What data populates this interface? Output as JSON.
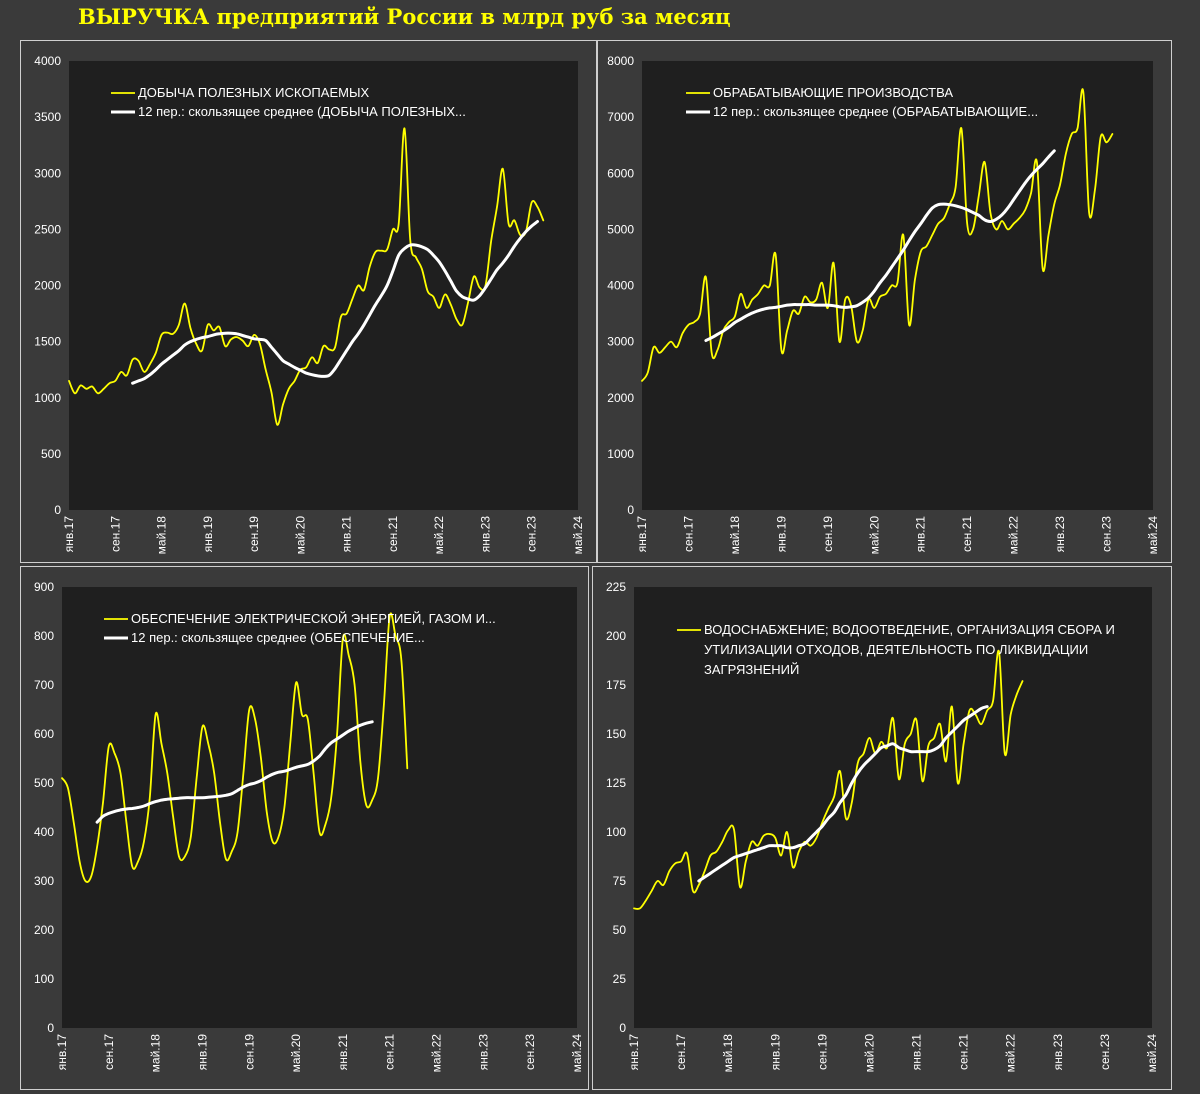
{
  "title": "ВЫРУЧКА предприятий России в млрд руб за месяц",
  "colors": {
    "background": "#3a3a3a",
    "plot": "#1f1f1f",
    "actual": "#ffff00",
    "moving_average": "#ffffff",
    "text": "#ffffff"
  },
  "chart_data": [
    {
      "type": "line",
      "title": "",
      "xlabel": "",
      "ylabel": "",
      "ylim": [
        0,
        4000
      ],
      "yticks": [
        "0",
        "500",
        "1000",
        "1500",
        "2000",
        "2500",
        "3000",
        "3500",
        "4000"
      ],
      "xticks": [
        "янв.17",
        "сен.17",
        "май.18",
        "янв.19",
        "сен.19",
        "май.20",
        "янв.21",
        "сен.21",
        "май.22",
        "янв.23",
        "сен.23",
        "май.24"
      ],
      "legend": [
        "ДОБЫЧА ПОЛЕЗНЫХ ИСКОПАЕМЫХ",
        "12 пер.: скользящее среднее (ДОБЫЧА ПОЛЕЗНЫХ..."
      ],
      "series": [
        {
          "name": "ДОБЫЧА ПОЛЕЗНЫХ ИСКОПАЕМЫХ",
          "role": "actual",
          "start": 0,
          "values": [
            1150,
            1040,
            1110,
            1080,
            1100,
            1040,
            1080,
            1130,
            1150,
            1230,
            1200,
            1340,
            1330,
            1230,
            1300,
            1400,
            1560,
            1580,
            1570,
            1650,
            1840,
            1620,
            1480,
            1420,
            1650,
            1600,
            1630,
            1460,
            1520,
            1540,
            1510,
            1460,
            1560,
            1480,
            1250,
            1050,
            760,
            940,
            1080,
            1150,
            1250,
            1270,
            1360,
            1310,
            1460,
            1430,
            1450,
            1720,
            1750,
            1880,
            2000,
            1960,
            2170,
            2300,
            2310,
            2320,
            2500,
            2550,
            3400,
            2400,
            2250,
            2150,
            1950,
            1900,
            1800,
            1920,
            1830,
            1700,
            1650,
            1850,
            2080,
            1980,
            2000,
            2400,
            2700,
            3040,
            2550,
            2580,
            2450,
            2480,
            2740,
            2700,
            2580
          ]
        },
        {
          "name": "12 пер.: скользящее среднее (ДОБЫЧА ПОЛЕЗНЫХ...",
          "role": "moving_average",
          "start": 11,
          "values": [
            1130,
            1150,
            1170,
            1205,
            1250,
            1300,
            1340,
            1380,
            1420,
            1470,
            1500,
            1520,
            1535,
            1545,
            1560,
            1570,
            1575,
            1575,
            1570,
            1555,
            1540,
            1525,
            1520,
            1510,
            1450,
            1390,
            1330,
            1300,
            1270,
            1245,
            1220,
            1205,
            1195,
            1190,
            1200,
            1260,
            1340,
            1420,
            1500,
            1570,
            1650,
            1740,
            1830,
            1910,
            2000,
            2130,
            2270,
            2330,
            2360,
            2360,
            2345,
            2320,
            2270,
            2210,
            2130,
            2040,
            1950,
            1900,
            1880,
            1870,
            1910,
            1980,
            2060,
            2140,
            2200,
            2270,
            2350,
            2420,
            2480,
            2530,
            2570
          ]
        }
      ]
    },
    {
      "type": "line",
      "title": "",
      "xlabel": "",
      "ylabel": "",
      "ylim": [
        0,
        8000
      ],
      "yticks": [
        "0",
        "1000",
        "2000",
        "3000",
        "4000",
        "5000",
        "6000",
        "7000",
        "8000"
      ],
      "xticks": [
        "янв.17",
        "сен.17",
        "май.18",
        "янв.19",
        "сен.19",
        "май.20",
        "янв.21",
        "сен.21",
        "май.22",
        "янв.23",
        "сен.23",
        "май.24"
      ],
      "legend": [
        "ОБРАБАТЫВАЮЩИЕ ПРОИЗВОДСТВА",
        "12 пер.: скользящее среднее (ОБРАБАТЫВАЮЩИЕ..."
      ],
      "series": [
        {
          "name": "ОБРАБАТЫВАЮЩИЕ ПРОИЗВОДСТВА",
          "role": "actual",
          "start": 0,
          "values": [
            2300,
            2450,
            2900,
            2800,
            2900,
            3000,
            2900,
            3150,
            3300,
            3350,
            3500,
            4150,
            2800,
            2850,
            3200,
            3350,
            3450,
            3850,
            3600,
            3750,
            3850,
            4000,
            4000,
            4550,
            2850,
            3200,
            3550,
            3500,
            3800,
            3700,
            3750,
            4050,
            3600,
            4400,
            3000,
            3750,
            3650,
            3000,
            3200,
            3750,
            3600,
            3800,
            3850,
            4000,
            4050,
            4900,
            3300,
            4100,
            4600,
            4700,
            4900,
            5100,
            5200,
            5450,
            5750,
            6800,
            5100,
            5000,
            5600,
            6200,
            5300,
            5000,
            5150,
            5000,
            5100,
            5200,
            5350,
            5650,
            6200,
            4300,
            4900,
            5450,
            5800,
            6350,
            6700,
            6800,
            7450,
            5300,
            5700,
            6650,
            6550,
            6700
          ]
        },
        {
          "name": "12 пер.: скользящее среднее (ОБРАБАТЫВАЮЩИЕ...",
          "role": "moving_average",
          "start": 11,
          "values": [
            3020,
            3070,
            3130,
            3190,
            3260,
            3340,
            3400,
            3460,
            3510,
            3550,
            3580,
            3600,
            3610,
            3630,
            3650,
            3660,
            3660,
            3660,
            3660,
            3650,
            3650,
            3650,
            3640,
            3620,
            3610,
            3620,
            3640,
            3700,
            3780,
            3900,
            4050,
            4180,
            4330,
            4480,
            4630,
            4800,
            4960,
            5100,
            5250,
            5380,
            5440,
            5450,
            5440,
            5420,
            5390,
            5350,
            5300,
            5250,
            5170,
            5140,
            5180,
            5260,
            5380,
            5530,
            5680,
            5830,
            5960,
            6070,
            6170,
            6290,
            6400
          ]
        }
      ]
    },
    {
      "type": "line",
      "title": "",
      "xlabel": "",
      "ylabel": "",
      "ylim": [
        0,
        900
      ],
      "yticks": [
        "0",
        "100",
        "200",
        "300",
        "400",
        "500",
        "600",
        "700",
        "800",
        "900"
      ],
      "xticks": [
        "янв.17",
        "сен.17",
        "май.18",
        "янв.19",
        "сен.19",
        "май.20",
        "янв.21",
        "сен.21",
        "май.22",
        "янв.23",
        "сен.23",
        "май.24"
      ],
      "legend": [
        "ОБЕСПЕЧЕНИЕ ЭЛЕКТРИЧЕСКОЙ ЭНЕРГИЕЙ, ГАЗОМ И...",
        "12 пер.: скользящее среднее (ОБЕСПЕЧЕНИЕ..."
      ],
      "series": [
        {
          "name": "ОБЕСПЕЧЕНИЕ ЭЛЕКТРИЧЕСКОЙ ЭНЕРГИЕЙ, ГАЗОМ И...",
          "role": "actual",
          "start": 0,
          "values": [
            510,
            490,
            420,
            340,
            300,
            310,
            370,
            460,
            575,
            560,
            520,
            420,
            330,
            340,
            380,
            470,
            640,
            580,
            520,
            430,
            350,
            350,
            390,
            510,
            615,
            580,
            520,
            420,
            345,
            360,
            400,
            520,
            650,
            630,
            550,
            440,
            380,
            390,
            450,
            580,
            705,
            640,
            630,
            520,
            400,
            415,
            470,
            600,
            795,
            760,
            700,
            540,
            455,
            465,
            510,
            660,
            840,
            800,
            750,
            530
          ]
        },
        {
          "name": "12 пер.: скользящее среднее (ОБЕСПЕЧЕНИЕ...",
          "role": "moving_average",
          "start": 6,
          "values": [
            420,
            432,
            438,
            442,
            445,
            447,
            448,
            450,
            453,
            458,
            462,
            465,
            467,
            468,
            469,
            470,
            470,
            470,
            470,
            471,
            472,
            473,
            475,
            478,
            485,
            492,
            497,
            500,
            505,
            512,
            518,
            522,
            524,
            528,
            532,
            535,
            538,
            545,
            555,
            570,
            582,
            590,
            598,
            606,
            612,
            618,
            622,
            625
          ]
        }
      ]
    },
    {
      "type": "line",
      "title": "",
      "xlabel": "",
      "ylabel": "",
      "ylim": [
        0,
        225
      ],
      "yticks": [
        "0",
        "25",
        "50",
        "75",
        "100",
        "125",
        "150",
        "175",
        "200",
        "225"
      ],
      "xticks": [
        "янв.17",
        "сен.17",
        "май.18",
        "янв.19",
        "сен.19",
        "май.20",
        "янв.21",
        "сен.21",
        "май.22",
        "янв.23",
        "сен.23",
        "май.24"
      ],
      "legend": [
        "ВОДОСНАБЖЕНИЕ; ВОДООТВЕДЕНИЕ, ОРГАНИЗАЦИЯ СБОРА И",
        "УТИЛИЗАЦИИ ОТХОДОВ, ДЕЯТЕЛЬНОСТЬ ПО ЛИКВИДАЦИИ",
        "ЗАГРЯЗНЕНИЙ"
      ],
      "series": [
        {
          "name": "ВОДОСНАБЖЕНИЕ; ВОДООТВЕДЕНИЕ, ОРГАНИЗАЦИЯ СБОРА И УТИЛИЗАЦИИ ОТХОДОВ, ДЕЯТЕЛЬНОСТЬ ПО ЛИКВИДАЦИИ ЗАГРЯЗНЕНИЙ",
          "role": "actual",
          "start": 0,
          "values": [
            61,
            61,
            65,
            70,
            75,
            73,
            80,
            84,
            85,
            89,
            70,
            73,
            80,
            88,
            90,
            95,
            101,
            101,
            72,
            85,
            95,
            93,
            98,
            99,
            97,
            88,
            100,
            82,
            90,
            95,
            93,
            97,
            105,
            112,
            118,
            131,
            107,
            115,
            135,
            140,
            148,
            140,
            146,
            143,
            158,
            127,
            145,
            150,
            157,
            126,
            144,
            148,
            155,
            136,
            164,
            125,
            145,
            162,
            160,
            155,
            162,
            167,
            192,
            140,
            160,
            170,
            177
          ]
        },
        {
          "name": "12 пер.: скользящее среднее",
          "role": "moving_average",
          "start": 11,
          "values": [
            75,
            77,
            79,
            81,
            83,
            85,
            87,
            88,
            89,
            90,
            91,
            92,
            93,
            93,
            93,
            92,
            92,
            93,
            94,
            97,
            100,
            103,
            107,
            110,
            115,
            119,
            125,
            130,
            134,
            137,
            140,
            143,
            144,
            145,
            143,
            142,
            141,
            141,
            141,
            141,
            142,
            144,
            148,
            151,
            154,
            157,
            159,
            161,
            163,
            164
          ]
        }
      ]
    }
  ]
}
